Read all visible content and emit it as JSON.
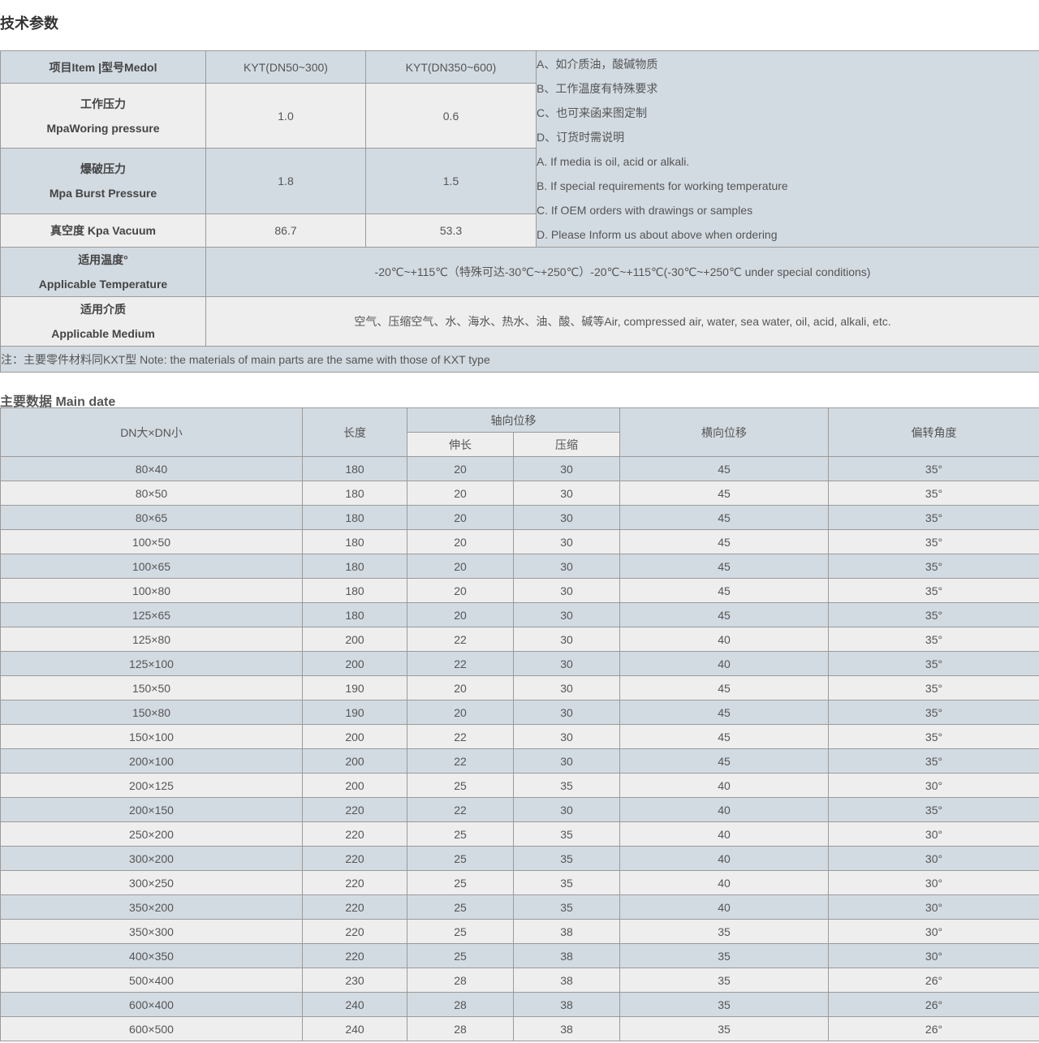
{
  "title": "技术参数",
  "spec": {
    "header": {
      "item": "项目Item |型号Medol",
      "col1": "KYT(DN50~300)",
      "col2": "KYT(DN350~600)"
    },
    "rows": [
      {
        "cn": "工作压力",
        "en": "MpaWoring pressure",
        "v1": "1.0",
        "v2": "0.6"
      },
      {
        "cn": "爆破压力",
        "en": "Mpa Burst Pressure",
        "v1": "1.8",
        "v2": "1.5"
      },
      {
        "label": "真空度 Kpa Vacuum",
        "v1": "86.7",
        "v2": "53.3"
      }
    ],
    "notes": [
      "A、如介质油，酸碱物质",
      "B、工作温度有特殊要求",
      "C、也可来函来图定制",
      "D、订货时需说明",
      "A. If media is oil, acid or alkali.",
      "B. If special requirements for working temperature",
      "C. If OEM orders with drawings or samples",
      "D. Please Inform us about above when ordering"
    ],
    "temperature": {
      "cn": "适用温度°",
      "en": "Applicable Temperature",
      "value": "-20℃~+115℃（特殊可达-30℃~+250℃）-20℃~+115℃(-30℃~+250℃ under special conditions)"
    },
    "medium": {
      "cn": "适用介质",
      "en": "Applicable Medium",
      "value": "空气、压缩空气、水、海水、热水、油、酸、碱等Air, compressed air, water, sea water, oil, acid, alkali, etc."
    },
    "footnote": "注：主要零件材料同KXT型 Note: the materials of main parts are the same with those of KXT type"
  },
  "main_title": "主要数据 Main date",
  "main": {
    "headers": {
      "dn": "DN大×DN小",
      "length": "长度",
      "axial": "轴向位移",
      "extend": "伸长",
      "compress": "压缩",
      "lateral": "横向位移",
      "angle": "偏转角度"
    },
    "rows": [
      [
        "80×40",
        "180",
        "20",
        "30",
        "45",
        "35°"
      ],
      [
        "80×50",
        "180",
        "20",
        "30",
        "45",
        "35°"
      ],
      [
        "80×65",
        "180",
        "20",
        "30",
        "45",
        "35°"
      ],
      [
        "100×50",
        "180",
        "20",
        "30",
        "45",
        "35°"
      ],
      [
        "100×65",
        "180",
        "20",
        "30",
        "45",
        "35°"
      ],
      [
        "100×80",
        "180",
        "20",
        "30",
        "45",
        "35°"
      ],
      [
        "125×65",
        "180",
        "20",
        "30",
        "45",
        "35°"
      ],
      [
        "125×80",
        "200",
        "22",
        "30",
        "40",
        "35°"
      ],
      [
        "125×100",
        "200",
        "22",
        "30",
        "40",
        "35°"
      ],
      [
        "150×50",
        "190",
        "20",
        "30",
        "45",
        "35°"
      ],
      [
        "150×80",
        "190",
        "20",
        "30",
        "45",
        "35°"
      ],
      [
        "150×100",
        "200",
        "22",
        "30",
        "45",
        "35°"
      ],
      [
        "200×100",
        "200",
        "22",
        "30",
        "45",
        "35°"
      ],
      [
        "200×125",
        "200",
        "25",
        "35",
        "40",
        "30°"
      ],
      [
        "200×150",
        "220",
        "22",
        "30",
        "40",
        "35°"
      ],
      [
        "250×200",
        "220",
        "25",
        "35",
        "40",
        "30°"
      ],
      [
        "300×200",
        "220",
        "25",
        "35",
        "40",
        "30°"
      ],
      [
        "300×250",
        "220",
        "25",
        "35",
        "40",
        "30°"
      ],
      [
        "350×200",
        "220",
        "25",
        "35",
        "40",
        "30°"
      ],
      [
        "350×300",
        "220",
        "25",
        "38",
        "35",
        "30°"
      ],
      [
        "400×350",
        "220",
        "25",
        "38",
        "35",
        "30°"
      ],
      [
        "500×400",
        "230",
        "28",
        "38",
        "35",
        "26°"
      ],
      [
        "600×400",
        "240",
        "28",
        "38",
        "35",
        "26°"
      ],
      [
        "600×500",
        "240",
        "28",
        "38",
        "35",
        "26°"
      ]
    ]
  }
}
